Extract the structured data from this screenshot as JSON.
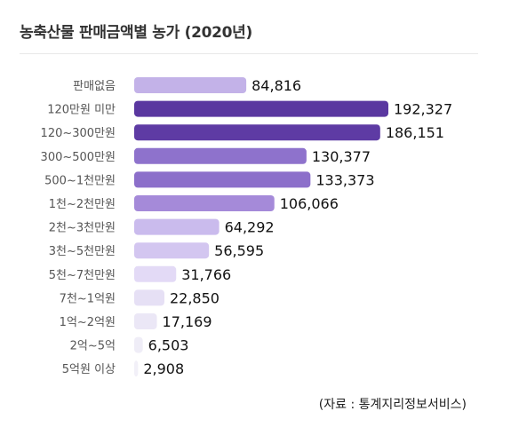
{
  "title": "농축산물 판매금액별 농가 (2020년)",
  "source": "(자료 : 통계지리정보서비스)",
  "chart_data": {
    "type": "bar",
    "orientation": "horizontal",
    "title": "농축산물 판매금액별 농가 (2020년)",
    "categories": [
      "판매없음",
      "120만원 미만",
      "120~300만원",
      "300~500만원",
      "500~1천만원",
      "1천~2천만원",
      "2천~3천만원",
      "3천~5천만원",
      "5천~7천만원",
      "7천~1억원",
      "1억~2억원",
      "2억~5억",
      "5억원 이상"
    ],
    "values": [
      84816,
      192327,
      186151,
      130377,
      133373,
      106066,
      64292,
      56595,
      31766,
      22850,
      17169,
      6503,
      2908
    ],
    "value_labels": [
      "84,816",
      "192,327",
      "186,151",
      "130,377",
      "133,373",
      "106,066",
      "64,292",
      "56,595",
      "31,766",
      "22,850",
      "17,169",
      "6,503",
      "2,908"
    ],
    "colors": [
      "#c3b2e8",
      "#5a37a0",
      "#5e3ba4",
      "#8e72cc",
      "#8c6fca",
      "#a58ad9",
      "#cabbed",
      "#d3c6f0",
      "#e3daf6",
      "#e6e0f5",
      "#ebe7f6",
      "#efedf7",
      "#f2f0f8"
    ],
    "xlim": [
      0,
      192327
    ],
    "grid": false,
    "legend": "none"
  }
}
